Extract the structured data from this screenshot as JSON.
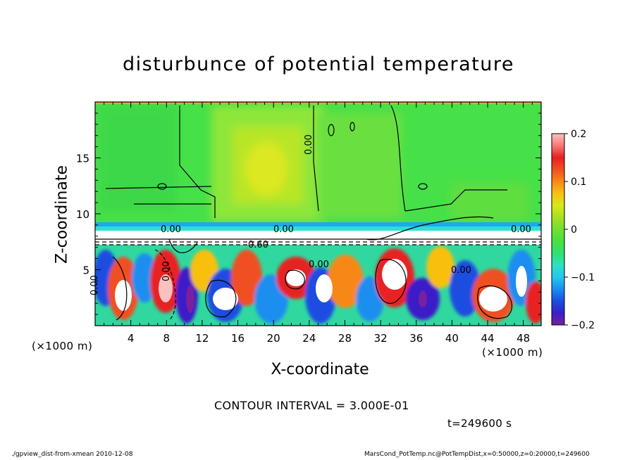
{
  "chart_data": {
    "type": "heatmap",
    "title": "disturbunce of potential temperature",
    "xlabel": "X-coordinate",
    "ylabel": "Z-coordinate",
    "x_unit_label": "(×1000 m)",
    "xlim": [
      0,
      50
    ],
    "ylim": [
      0,
      20
    ],
    "xticks": [
      4,
      8,
      12,
      16,
      20,
      24,
      28,
      32,
      36,
      40,
      44,
      48
    ],
    "yticks": [
      5,
      10,
      15
    ],
    "colorbar": {
      "range": [
        -0.2,
        0.2
      ],
      "ticks": [
        "0.2",
        "0.1",
        "0",
        "−0.1",
        "−0.2"
      ],
      "colors": [
        "#7a1fa0",
        "#3a1fc8",
        "#1a4ee0",
        "#1a8ef0",
        "#22c8f0",
        "#2ee0c0",
        "#30e070",
        "#48e040",
        "#70e030",
        "#a8e020",
        "#d8e818",
        "#f8c010",
        "#f88818",
        "#f05020",
        "#e82020",
        "#f87878",
        "#fcc0c0"
      ]
    },
    "contour_interval_text": "CONTOUR INTERVAL = 3.000E-01",
    "contour_labels": [
      "0.00",
      "0.00",
      "0.00",
      "0.60",
      "0.00",
      "0.00",
      "0.00",
      "0.00",
      "0.00"
    ],
    "time_text": "t=249600 s"
  },
  "footer": {
    "left": "./gpview_dist-from-xmean  2010-12-08",
    "right": "MarsCond_PotTemp.nc@PotTempDist,x=0:50000,z=0:20000,t=249600"
  }
}
